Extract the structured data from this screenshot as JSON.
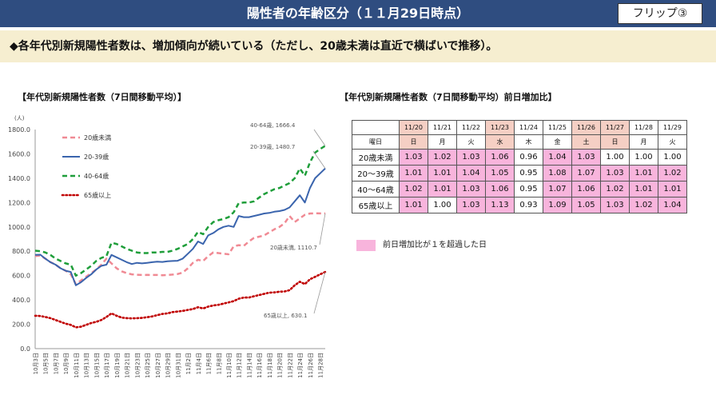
{
  "header": {
    "title": "陽性者の年齢区分（１１月29日時点）",
    "flip_label": "フリップ③",
    "background": "#2f4d80"
  },
  "banner": {
    "text": "◆各年代別新規陽性者数は、増加傾向が続いている（ただし、20歳未満は直近で横ばいで推移）。",
    "background": "#f6eed0"
  },
  "left_title": "【年代別新規陽性者数（7日間移動平均）】",
  "right_title": "【年代別新規陽性者数（7日間移動平均）前日増加比】",
  "chart_data": [
    {
      "type": "line",
      "unit_label": "(人)",
      "x": [
        "10月3日",
        "10月4日",
        "10月5日",
        "10月6日",
        "10月7日",
        "10月8日",
        "10月9日",
        "10月10日",
        "10月11日",
        "10月12日",
        "10月13日",
        "10月14日",
        "10月15日",
        "10月16日",
        "10月17日",
        "10月18日",
        "10月19日",
        "10月20日",
        "10月21日",
        "10月22日",
        "10月23日",
        "10月24日",
        "10月25日",
        "10月26日",
        "10月27日",
        "10月28日",
        "10月29日",
        "10月30日",
        "10月31日",
        "11月1日",
        "11月2日",
        "11月3日",
        "11月4日",
        "11月5日",
        "11月6日",
        "11月7日",
        "11月8日",
        "11月9日",
        "11月10日",
        "11月11日",
        "11月12日",
        "11月13日",
        "11月14日",
        "11月15日",
        "11月16日",
        "11月17日",
        "11月18日",
        "11月19日",
        "11月20日",
        "11月21日",
        "11月22日",
        "11月23日",
        "11月24日",
        "11月25日",
        "11月26日",
        "11月27日",
        "11月28日",
        "11月29日"
      ],
      "x_tick_labels": [
        "10月3日",
        "10月5日",
        "10月7日",
        "10月9日",
        "10月11日",
        "10月13日",
        "10月15日",
        "10月17日",
        "10月19日",
        "10月21日",
        "10月23日",
        "10月25日",
        "10月27日",
        "10月29日",
        "10月31日",
        "11月2日",
        "11月4日",
        "11月6日",
        "11月8日",
        "11月10日",
        "11月12日",
        "11月14日",
        "11月16日",
        "11月18日",
        "11月20日",
        "11月22日",
        "11月24日",
        "11月26日",
        "11月28日"
      ],
      "ylim": [
        0,
        1800
      ],
      "y_ticks": [
        "0.0",
        "200.0",
        "400.0",
        "600.0",
        "800.0",
        "1000.0",
        "1200.0",
        "1400.0",
        "1600.0",
        "1800.0"
      ],
      "grid": false,
      "legend_position": "top-left",
      "series": [
        {
          "name": "20歳未満",
          "color": "#f08a94",
          "style": "dashed",
          "values": [
            760,
            765,
            740,
            710,
            690,
            660,
            640,
            610,
            530,
            560,
            590,
            620,
            650,
            690,
            740,
            700,
            660,
            635,
            620,
            610,
            607,
            605,
            606,
            605,
            605,
            603,
            605,
            608,
            613,
            625,
            660,
            705,
            730,
            720,
            760,
            790,
            785,
            780,
            775,
            840,
            850,
            845,
            880,
            910,
            920,
            930,
            955,
            980,
            1000,
            1030,
            1090,
            1040,
            1070,
            1100,
            1110,
            1112,
            1111,
            1110.7
          ],
          "end_label": "20歳未満, 1110.7"
        },
        {
          "name": "20-39歳",
          "color": "#3a64ad",
          "style": "solid",
          "values": [
            770,
            772,
            740,
            710,
            690,
            660,
            640,
            630,
            520,
            545,
            580,
            610,
            650,
            680,
            690,
            770,
            750,
            730,
            710,
            695,
            705,
            700,
            705,
            710,
            715,
            712,
            718,
            720,
            722,
            740,
            780,
            820,
            880,
            860,
            930,
            950,
            980,
            1000,
            1010,
            1000,
            1090,
            1080,
            1080,
            1090,
            1100,
            1110,
            1115,
            1125,
            1130,
            1140,
            1160,
            1210,
            1260,
            1200,
            1320,
            1400,
            1440,
            1480.7
          ],
          "end_label": "20-39歳, 1480.7"
        },
        {
          "name": "40-64歳",
          "color": "#1f9e3a",
          "style": "dashed",
          "values": [
            805,
            800,
            790,
            770,
            740,
            720,
            700,
            690,
            600,
            620,
            650,
            680,
            720,
            745,
            760,
            870,
            860,
            840,
            820,
            805,
            790,
            785,
            785,
            790,
            790,
            795,
            795,
            805,
            820,
            840,
            860,
            900,
            960,
            940,
            1000,
            1040,
            1055,
            1065,
            1080,
            1120,
            1195,
            1200,
            1200,
            1210,
            1240,
            1270,
            1290,
            1310,
            1320,
            1340,
            1360,
            1400,
            1480,
            1420,
            1530,
            1610,
            1640,
            1666.4
          ],
          "end_label": "40-64歳, 1666.4"
        },
        {
          "name": "65歳以上",
          "color": "#c00000",
          "style": "dotted",
          "values": [
            270,
            268,
            260,
            250,
            235,
            220,
            205,
            195,
            175,
            180,
            195,
            210,
            220,
            235,
            260,
            290,
            270,
            255,
            250,
            248,
            250,
            252,
            258,
            265,
            275,
            285,
            290,
            300,
            305,
            310,
            318,
            325,
            340,
            330,
            345,
            355,
            360,
            370,
            380,
            390,
            410,
            420,
            420,
            430,
            440,
            450,
            460,
            462,
            468,
            470,
            480,
            520,
            550,
            530,
            570,
            590,
            610,
            630.1
          ],
          "end_label": "65歳以上, 630.1"
        }
      ]
    },
    {
      "type": "table",
      "dates": [
        "11/20",
        "11/21",
        "11/22",
        "11/23",
        "11/24",
        "11/25",
        "11/26",
        "11/27",
        "11/28",
        "11/29"
      ],
      "weekday_header": "曜日",
      "weekdays": [
        "日",
        "月",
        "火",
        "水",
        "木",
        "金",
        "土",
        "日",
        "月",
        "火"
      ],
      "holiday_columns": [
        0,
        3,
        6,
        7
      ],
      "rows": [
        {
          "label": "20歳未満",
          "values": [
            "1.03",
            "1.02",
            "1.03",
            "1.06",
            "0.96",
            "1.04",
            "1.03",
            "1.00",
            "1.00",
            "1.00"
          ]
        },
        {
          "label": "20～39歳",
          "values": [
            "1.01",
            "1.01",
            "1.04",
            "1.05",
            "0.95",
            "1.08",
            "1.07",
            "1.03",
            "1.01",
            "1.02"
          ]
        },
        {
          "label": "40～64歳",
          "values": [
            "1.02",
            "1.01",
            "1.03",
            "1.06",
            "0.95",
            "1.07",
            "1.06",
            "1.02",
            "1.01",
            "1.01"
          ]
        },
        {
          "label": "65歳以上",
          "values": [
            "1.01",
            "1.00",
            "1.03",
            "1.13",
            "0.93",
            "1.09",
            "1.05",
            "1.03",
            "1.02",
            "1.04"
          ]
        }
      ],
      "highlight_color": "#f8b4dc",
      "holiday_header_color": "#f5cfc4",
      "legend_label": "前日増加比が１を超過した日"
    }
  ]
}
